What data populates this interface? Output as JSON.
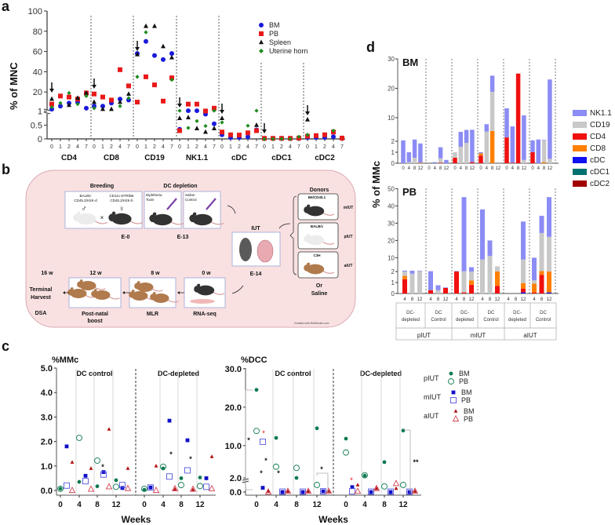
{
  "panel_labels": [
    "a",
    "b",
    "c",
    "d"
  ],
  "colors": {
    "BM": "#1a1adb",
    "PB": "#e8191a",
    "Spleen": "#111111",
    "Uterine horn": "#1e8c1e",
    "NK1.1": "#8c8cf5",
    "CD19": "#c8c8c8",
    "CD4": "#f01010",
    "CD8": "#ff8000",
    "cDC": "#1010f0",
    "cDC1": "#007070",
    "cDC2": "#a00000",
    "pIUT": "#0f7a4f",
    "mIUT": "#1010c8",
    "aIUT": "#b01010",
    "diagram_bg": "#f9e1e1",
    "diagram_border": "#d9a9b5"
  },
  "diagram": {
    "breeding": "Breeding",
    "dc_depletion": "DC depletion",
    "male_strain": [
      "BALB/c",
      "CD45.2/H2K-d"
    ],
    "female_strain": [
      "CD11c-DTR/B6",
      "CD45.2/H2K-b"
    ],
    "male_symbol": "♂",
    "female_symbol": "♀",
    "cross": "×",
    "dt_label": [
      "Diphtheria",
      "Toxin"
    ],
    "saline_label": [
      "Saline",
      "Control"
    ],
    "e0": "E-0",
    "e13": "E-13",
    "iut": "IUT",
    "e14": "E-14",
    "donors": "Donors",
    "donor_items": [
      {
        "strain": "B6/CD45.1",
        "group": "mIUT"
      },
      {
        "strain": "BALB/c",
        "group": "pIUT"
      },
      {
        "strain": "C3H",
        "group": "aIUT"
      }
    ],
    "or": "Or",
    "saline": "Saline",
    "timeline": [
      {
        "time": "16 w",
        "label": [
          "Terminal",
          "Harvest"
        ],
        "sub": "DSA"
      },
      {
        "time": "12 w",
        "label": [
          "Post-natal",
          "boost"
        ]
      },
      {
        "time": "8 w",
        "label": [
          "MLR"
        ]
      },
      {
        "time": "0 w",
        "label": [
          "RNA-seq"
        ]
      }
    ],
    "credit": "Created with BioRender.com"
  },
  "chart_data": [
    {
      "type": "scatter",
      "panel": "a",
      "ylabel": "% of MNC",
      "y_ticks": [
        "0",
        "0.5",
        "1",
        "20",
        "40",
        "60",
        "80",
        "100"
      ],
      "ylim": [
        0,
        100
      ],
      "y_axis_break": 1,
      "x_ticks": [
        "0",
        "1",
        "2",
        "4",
        "7"
      ],
      "categories": [
        "CD4",
        "CD8",
        "CD19",
        "NK1.1",
        "cDC",
        "cDC1",
        "cDC2"
      ],
      "legend_position": "top-right",
      "series": [
        {
          "name": "BM",
          "marker": "circle",
          "values": [
            [
              3,
              6,
              9,
              10,
              4
            ],
            [
              6,
              6,
              9,
              13,
              12
            ],
            [
              58,
              70,
              56,
              52,
              58
            ],
            [
              0.35,
              1.5,
              1.5,
              0.9,
              0.55
            ],
            [
              0.15,
              0.05,
              0.05,
              0.07,
              0.33
            ],
            [
              0.02,
              0.02,
              0.02,
              0.02,
              0.02
            ],
            [
              0.05,
              0.05,
              0.05,
              0.08,
              0.03
            ]
          ]
        },
        {
          "name": "PB",
          "marker": "square",
          "values": [
            [
              8,
              16,
              15,
              13,
              19
            ],
            [
              18,
              15,
              12,
              42,
              26
            ],
            [
              10,
              35,
              27,
              11,
              34
            ],
            [
              0.3,
              8,
              8,
              1.2,
              4
            ],
            [
              0.25,
              0.15,
              0.14,
              0.22,
              0.3
            ],
            [
              0.02,
              0.02,
              0.02,
              0.02,
              0.03
            ],
            [
              0.1,
              0.12,
              0.15,
              0.25,
              0.03
            ]
          ]
        },
        {
          "name": "Spleen",
          "marker": "triangle",
          "values": [
            [
              13,
              null,
              7,
              14,
              19
            ],
            [
              10,
              3,
              3,
              10,
              18
            ],
            [
              57,
              85,
              85,
              65,
              54
            ],
            [
              0.75,
              0.78,
              0.38,
              0.25,
              0.38
            ],
            [
              0.75,
              null,
              null,
              null,
              0.5
            ],
            [
              null,
              null,
              null,
              null,
              null
            ],
            [
              0.7,
              null,
              null,
              null,
              null
            ]
          ]
        },
        {
          "name": "Uterine horn",
          "marker": "diamond",
          "values": [
            [
              5,
              9,
              19,
              8,
              16
            ],
            [
              4,
              null,
              null,
              6,
              14
            ],
            [
              35,
              79,
              null,
              null,
              32
            ],
            [
              1.5,
              0.4,
              0.65,
              0.47,
              1.5
            ],
            [
              0.6,
              null,
              null,
              0.48,
              1.5
            ],
            [
              0,
              0,
              0,
              0,
              0.08
            ],
            [
              0.15,
              null,
              null,
              0.3,
              null
            ]
          ]
        }
      ]
    },
    {
      "type": "scatter",
      "panel": "c-left",
      "title": "%MMc",
      "xlabel": "Weeks",
      "x_ticks": [
        "0",
        "4",
        "8",
        "12"
      ],
      "y_ticks": [
        "0.0",
        "1.0",
        "2.0",
        "3.0",
        "4.0",
        "5.0"
      ],
      "ylim": [
        0,
        5
      ],
      "groups": [
        "DC control",
        "DC-depleted"
      ],
      "series": [
        {
          "name": "pIUT BM",
          "values": [
            [
              0.07,
              0.35,
              0.17,
              0.42
            ],
            [
              0.03,
              0.9,
              0.5,
              0.53
            ]
          ]
        },
        {
          "name": "pIUT PB",
          "values": [
            [
              0.07,
              2.15,
              1.22,
              0.15
            ],
            [
              0.07,
              0.97,
              0.22,
              0.18
            ]
          ]
        },
        {
          "name": "mIUT BM",
          "values": [
            [
              1.8,
              0.6,
              0.75,
              0.1
            ],
            [
              0.12,
              2.85,
              2.05,
              0.5
            ]
          ]
        },
        {
          "name": "mIUT PB",
          "values": [
            [
              0.2,
              0.38,
              0.65,
              0.22
            ],
            [
              0.12,
              0.57,
              0.82,
              0.15
            ]
          ]
        },
        {
          "name": "aIUT BM",
          "values": [
            [
              1.15,
              0.9,
              2.5,
              0.9
            ],
            [
              1.0,
              0.05,
              0.03,
              1.38
            ]
          ]
        },
        {
          "name": "aIUT PB",
          "values": [
            [
              0.0,
              0.05,
              0.15,
              0.08
            ],
            [
              0.0,
              0.07,
              0.05,
              0.07
            ]
          ]
        }
      ],
      "annotations": [
        "*",
        "*",
        "*"
      ]
    },
    {
      "type": "scatter",
      "panel": "c-right",
      "title": "%DCC",
      "xlabel": "Weeks",
      "x_ticks": [
        "0",
        "4",
        "8",
        "12"
      ],
      "y_ticks": [
        "0.0",
        "2.0",
        "10.0",
        "20.0",
        "30.0"
      ],
      "ylim": [
        0,
        30
      ],
      "y_axis_break": 2,
      "groups": [
        "DC control",
        "DC-depleted"
      ],
      "series": [
        {
          "name": "pIUT BM",
          "values": [
            [
              24.5,
              12,
              2,
              14.5
            ],
            [
              11.8,
              2.2,
              5.7,
              13.9
            ]
          ]
        },
        {
          "name": "pIUT PB",
          "values": [
            [
              13.8,
              4.5,
              4.2,
              1.0
            ],
            [
              8.2,
              2.3,
              0.8,
              1.0
            ]
          ]
        },
        {
          "name": "mIUT BM",
          "values": [
            [
              0.6,
              0.0,
              0.0,
              0.1
            ],
            [
              0.7,
              0.0,
              0.0,
              0.0
            ]
          ]
        },
        {
          "name": "mIUT PB",
          "values": [
            [
              11,
              0.05,
              0.05,
              0.1
            ],
            [
              0.1,
              0.05,
              0.05,
              0.05
            ]
          ]
        },
        {
          "name": "aIUT BM",
          "values": [
            [
              0.1,
              0.1,
              0.1,
              0.1
            ],
            [
              1.0,
              0.5,
              0.5,
              0.1
            ]
          ]
        },
        {
          "name": "aIUT PB",
          "values": [
            [
              0.0,
              0.1,
              0.1,
              0.1
            ],
            [
              0.1,
              0.5,
              1.2,
              0.1
            ]
          ]
        }
      ],
      "annotations": [
        "*",
        "*",
        "*",
        "*",
        "*",
        "*",
        "*",
        "**"
      ]
    },
    {
      "type": "bar",
      "stacked": true,
      "panel": "d",
      "ylabel": "% of MMc",
      "legend": [
        "NK1.1",
        "CD19",
        "CD4",
        "CD8",
        "cDC",
        "cDC1",
        "cDC2"
      ],
      "legend_position": "right",
      "group_labels": [
        [
          "DC-",
          "depleted"
        ],
        [
          "DC",
          "Control"
        ],
        [
          "DC-",
          "depleted"
        ],
        [
          "DC",
          "Control"
        ],
        [
          "DC-",
          "depleted"
        ],
        [
          "DC",
          "Control"
        ]
      ],
      "iut_labels": [
        "pIUT",
        "mIUT",
        "aIUT"
      ],
      "panels": [
        {
          "name": "BM",
          "y_ticks": [
            "0",
            "1",
            "2",
            "10",
            "20",
            "30"
          ],
          "ylim": [
            0,
            30
          ],
          "times": [
            "0",
            "4",
            "8",
            "12"
          ],
          "groups": [
            [
              {
                "NK1.1": 2.3
              },
              {
                "CD19": 0.1,
                "NK1.1": 0.9
              },
              {
                "CD19": 0.5,
                "NK1.1": 2.1
              },
              {
                "CD8": 0.05,
                "NK1.1": 1.75
              }
            ],
            [
              {},
              {
                "NK1.1": 0.1
              },
              {
                "CD4": 0.05,
                "NK1.1": 1.0,
                "CD19": 0.4
              },
              {
                "NK1.1": 0.3
              }
            ],
            [
              {
                "CD19": 0.5,
                "CD4": 0.5
              },
              {
                "CD19": 1.5,
                "NK1.1": 3.7
              },
              {
                "CD19": 1.85,
                "NK1.1": 4.0
              },
              {
                "CD4": 0.1,
                "NK1.1": 5.8
              }
            ],
            [
              {
                "NK1.1": 0.1,
                "CD4": 0.7,
                "CD8": 0.2
              },
              {
                "NK1.1": 2.5,
                "CD19": 5.3
              },
              {
                "CD8": 5.5,
                "NK1.1": 5.5,
                "CD19": 13.3
              },
              {}
            ],
            [
              {
                "CD4": 3.3,
                "NK1.1": 9.9
              },
              {
                "CD4": 0.05,
                "NK1.1": 7.0
              },
              {
                "CD4": 25
              },
              {
                "CD19": 0.3,
                "NK1.1": 10.5
              }
            ],
            [
              {
                "CD4": 1.0,
                "NK1.1": 1.3
              },
              {
                "NK1.1": 2.6
              },
              {
                "CD8": 0.1,
                "CD19": 2.2,
                "NK1.1": 0.2
              },
              {
                "CD19": 0.4,
                "NK1.1": 22.6
              }
            ]
          ]
        },
        {
          "name": "PB",
          "y_ticks": [
            "0",
            "1",
            "2",
            "10",
            "20",
            "30",
            "40",
            "50"
          ],
          "ylim": [
            0,
            50
          ],
          "times": [
            "4",
            "8",
            "12"
          ],
          "groups": [
            [
              {
                "CD19": 0.4,
                "CD8": 0.3,
                "CD4": 1.3,
                "NK1.1": 0.5
              },
              {
                "CD19": 1.8,
                "NK1.1": 0.7
              },
              {
                "CD19": 2.3,
                "NK1.1": 0.2
              }
            ],
            [
              {
                "CD4": 0.3,
                "NK1.1": 1.9
              },
              {
                "CD19": 0.3,
                "NK1.1": 0.45
              },
              {
                "CD4": 0.5,
                "NK1.1": 0.05
              }
            ],
            [
              {
                "CD8": 0.2,
                "CD4": 2.0,
                "NK1.1": 0.1
              },
              {
                "CD19": 2.0,
                "CD4": 0.1,
                "NK1.1": 43
              },
              {
                "CD8": 0.4,
                "CD4": 0.8,
                "CD19": 0.8,
                "NK1.1": 2.5
              }
            ],
            [
              {
                "CD19": 9,
                "NK1.1": 29
              },
              {
                "CD19": 11,
                "NK1.1": 9
              },
              {
                "CD8": 1.3,
                "CD4": 0.7,
                "CD19": 3
              }
            ],
            [
              {},
              {},
              {
                "cDC": 0.1,
                "CD8": 0.5,
                "CD4": 0.35,
                "CD19": 8,
                "NK1.1": 22
              }
            ],
            [
              {
                "CD4": 0.1,
                "CD8": 0.8,
                "CD19": 0.3,
                "NK1.1": 8.8
              },
              {
                "CD4": 1.7,
                "CD8": 0.6,
                "CD19": 22,
                "NK1.1": 10
              },
              {
                "cDC": 0.1,
                "CD8": 2,
                "CD19": 20,
                "NK1.1": 23
              }
            ]
          ]
        }
      ]
    }
  ]
}
